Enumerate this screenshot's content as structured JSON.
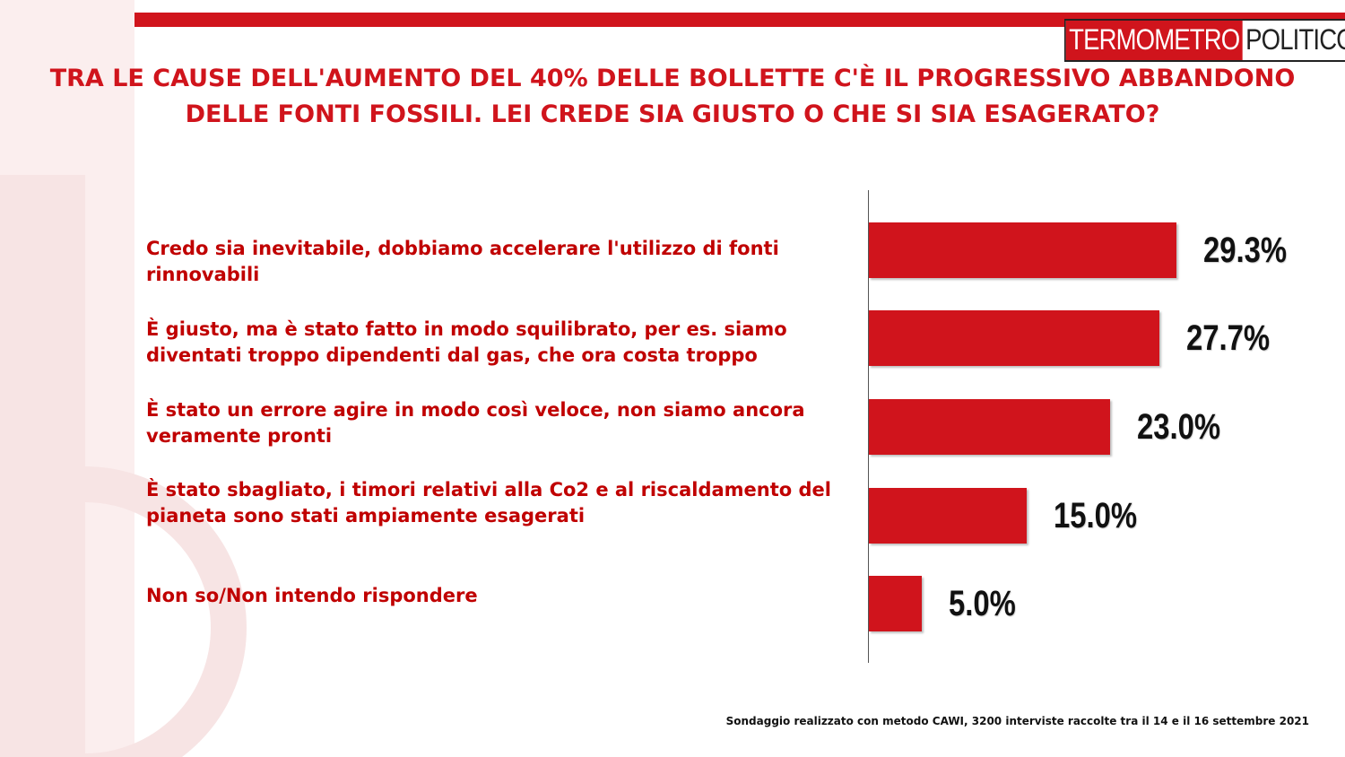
{
  "brand": {
    "part_a": "TERMOMETRO",
    "part_b": "POLITICO",
    "accent_color": "#d0141c"
  },
  "chart_data": {
    "type": "bar",
    "orientation": "horizontal",
    "title": "TRA LE CAUSE DELL'AUMENTO DEL 40% DELLE BOLLETTE C'È IL PROGRESSIVO ABBANDONO DELLE FONTI FOSSILI. LEI CREDE SIA GIUSTO O CHE SI SIA ESAGERATO?",
    "categories": [
      "Credo sia inevitabile, dobbiamo accelerare l'utilizzo di fonti rinnovabili",
      "È giusto, ma è stato fatto in modo squilibrato, per es. siamo diventati troppo dipendenti dal gas, che ora costa troppo",
      "È stato un errore agire in modo così veloce, non siamo ancora veramente pronti",
      "È stato sbagliato, i timori relativi alla Co2 e al riscaldamento del pianeta sono stati ampiamente esagerati",
      "Non so/Non intendo rispondere"
    ],
    "values": [
      29.3,
      27.7,
      23.0,
      15.0,
      5.0
    ],
    "value_labels": [
      "29.3%",
      "27.7%",
      "23.0%",
      "15.0%",
      "5.0%"
    ],
    "bar_color": "#d0141c",
    "grid": false
  },
  "footer": {
    "source": "Sondaggio realizzato con metodo CAWI, 3200 interviste raccolte tra il 14 e il 16  settembre 2021"
  }
}
